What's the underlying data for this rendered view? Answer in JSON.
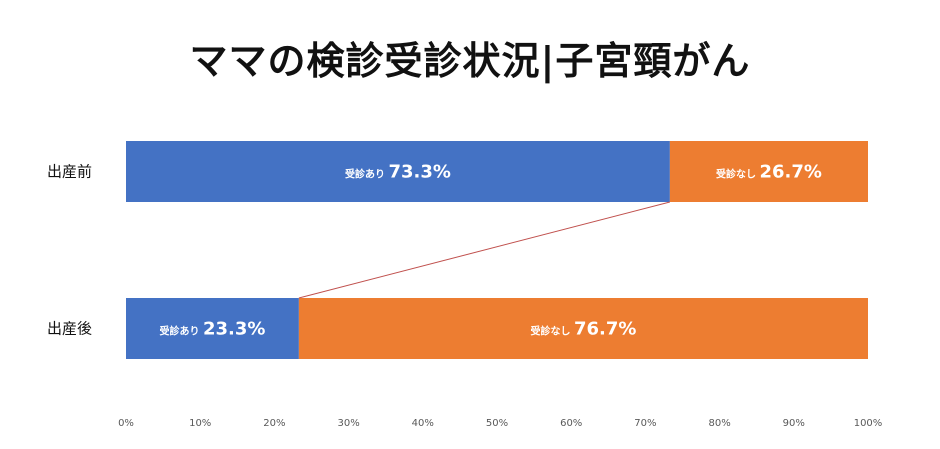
{
  "colors": {
    "received": "#4472C4",
    "not_received": "#ED7D31",
    "connector": "#C0504D",
    "text": "#111111",
    "tick": "#595959"
  },
  "chart_data": {
    "type": "bar",
    "orientation": "horizontal",
    "stacked": true,
    "title": "ママの検診受診状況|子宮頸がん",
    "categories": [
      "出産前",
      "出産後"
    ],
    "series": [
      {
        "name": "受診あり",
        "values": [
          73.3,
          23.3
        ]
      },
      {
        "name": "受診なし",
        "values": [
          26.7,
          76.7
        ]
      }
    ],
    "value_labels": [
      [
        "73.3%",
        "26.7%"
      ],
      [
        "23.3%",
        "76.7%"
      ]
    ],
    "xlim": [
      0,
      100
    ],
    "x_ticks": [
      "0%",
      "10%",
      "20%",
      "30%",
      "40%",
      "50%",
      "60%",
      "70%",
      "80%",
      "90%",
      "100%"
    ],
    "grid": false,
    "legend": "none",
    "connector": {
      "from": "出産前 受診あり",
      "to": "出産後 受診あり"
    }
  }
}
